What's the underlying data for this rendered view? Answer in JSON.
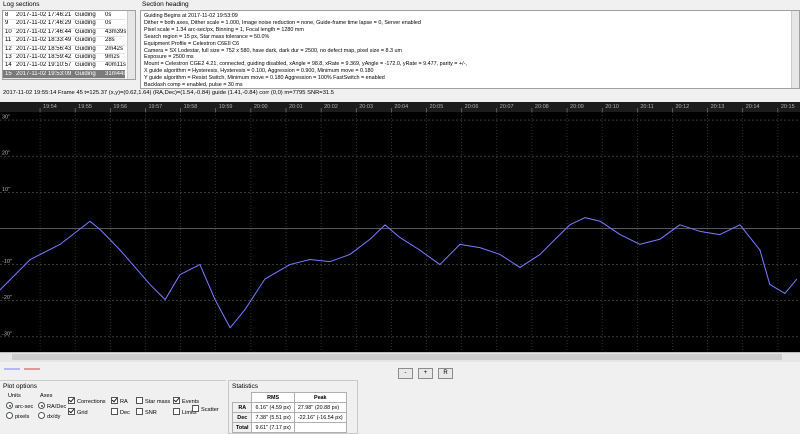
{
  "log_sections": {
    "title": "Log sections",
    "rows": [
      [
        "8",
        "2017-11-02 17:46:21",
        "Guiding",
        "0s"
      ],
      [
        "9",
        "2017-11-02 17:46:29",
        "Guiding",
        "0s"
      ],
      [
        "10",
        "2017-11-02 17:46:44",
        "Guiding",
        "43m39s"
      ],
      [
        "11",
        "2017-11-02 18:33:49",
        "Guiding",
        "28s"
      ],
      [
        "12",
        "2017-11-02 18:56:43",
        "Guiding",
        "2m42s"
      ],
      [
        "13",
        "2017-11-02 18:59:42",
        "Guiding",
        "9m2s"
      ],
      [
        "14",
        "2017-11-02 19:10:57",
        "Guiding",
        "40m11s"
      ],
      [
        "15",
        "2017-11-02 19:53:09",
        "Guiding",
        "31m44s"
      ]
    ]
  },
  "section_heading": {
    "title": "Section heading",
    "lines": [
      "Guiding Begins at 2017-11-02 19:53:09",
      "Dither = both axes, Dither scale = 1.000, Image noise reduction = none, Guide-frame time lapse = 0, Server enabled",
      "Pixel scale = 1.34 arc-sec/px, Binning = 1, Focal length = 1280 mm",
      "Search region = 15 px, Star mass tolerance = 50.0%",
      "Equipment Profile = Celestron C6EII C6",
      "Camera = SX Lodestar, full size = 752 x 580, have dark, dark dur = 2500, no defect map, pixel size = 8.3 um",
      "Exposure = 2500 ms",
      "Mount = Celestron CGE2 4.21,  connected, guiding disabled, xAngle = 98.8, xRate = 9.369, yAngle = -172.0, yRate = 9.477, parity = +/-,",
      "X guide algorithm = Hysteresis, Hysteresis = 0.100, Aggression = 0.900, Minimum move = 0.180",
      "Y guide algorithm = Resist Switch, Minimum move = 0.180 Aggression = 100% FastSwitch = enabled",
      "Backlash comp = enabled, pulse = 30 ms"
    ]
  },
  "status_line": "2017-11-02 19:55:14 Frame 45 t=125.37 (x,y)=(0.62,1.64) (RA,Dec)=(1.54,-0.84) guide (1.41,-0.84) corr (0,0) m=7795 SNR=31.5",
  "chart_data": {
    "type": "line",
    "xlim": [
      1192.86,
      1215.63
    ],
    "ylim": [
      -34.2,
      35
    ],
    "xticks": [
      {
        "value": 1194,
        "label": "19:54"
      },
      {
        "value": 1195,
        "label": "19:55"
      },
      {
        "value": 1196,
        "label": "19:56"
      },
      {
        "value": 1197,
        "label": "19:57"
      },
      {
        "value": 1198,
        "label": "19:58"
      },
      {
        "value": 1199,
        "label": "19:59"
      },
      {
        "value": 1200,
        "label": "20:00"
      },
      {
        "value": 1201,
        "label": "20:01"
      },
      {
        "value": 1202,
        "label": "20:02"
      },
      {
        "value": 1203,
        "label": "20:03"
      },
      {
        "value": 1204,
        "label": "20:04"
      },
      {
        "value": 1205,
        "label": "20:05"
      },
      {
        "value": 1206,
        "label": "20:06"
      },
      {
        "value": 1207,
        "label": "20:07"
      },
      {
        "value": 1208,
        "label": "20:08"
      },
      {
        "value": 1209,
        "label": "20:09"
      },
      {
        "value": 1210,
        "label": "20:10"
      },
      {
        "value": 1211,
        "label": "20:11"
      },
      {
        "value": 1212,
        "label": "20:12"
      },
      {
        "value": 1213,
        "label": "20:13"
      },
      {
        "value": 1214,
        "label": "20:14"
      },
      {
        "value": 1215,
        "label": "20:15"
      }
    ],
    "yticks": [
      {
        "value": 30,
        "label": "30''"
      },
      {
        "value": 20,
        "label": "20''"
      },
      {
        "value": 10,
        "label": "10''"
      },
      {
        "value": -10,
        "label": "-10''"
      },
      {
        "value": -20,
        "label": "-20''"
      },
      {
        "value": -30,
        "label": "-30''"
      }
    ],
    "grid": true,
    "series": [
      {
        "color": "#7b7bff",
        "x": [
          1192.86,
          1193.72,
          1194.57,
          1195.42,
          1195.71,
          1196.28,
          1197.13,
          1197.56,
          1197.98,
          1198.55,
          1198.98,
          1199.41,
          1199.83,
          1200.4,
          1201.11,
          1201.68,
          1202.25,
          1202.82,
          1203.39,
          1203.82,
          1204.24,
          1204.81,
          1205.38,
          1205.95,
          1206.52,
          1207.09,
          1207.66,
          1208.23,
          1208.66,
          1209.08,
          1209.51,
          1209.94,
          1210.51,
          1211.07,
          1211.64,
          1212.21,
          1212.78,
          1213.35,
          1213.92,
          1214.49,
          1214.77,
          1215.2,
          1215.54
        ],
        "values": [
          -17,
          -8.6,
          -4.4,
          2,
          -0.3,
          -6,
          -15.5,
          -19.7,
          -12.8,
          -10,
          -19.7,
          -27.5,
          -22.5,
          -14,
          -10,
          -8.6,
          -9.2,
          -7.2,
          -3,
          1,
          -2.5,
          -6,
          -10,
          -4.4,
          -5.3,
          -7.2,
          -10.8,
          -7.2,
          -3,
          1,
          3,
          2,
          -1.7,
          -4.4,
          -3,
          1,
          -0.8,
          -1.7,
          1,
          -6,
          -15.5,
          -18,
          -14
        ]
      }
    ]
  },
  "zoom_buttons": [
    "-",
    "+",
    "R"
  ],
  "plot_options": {
    "title": "Plot options",
    "units": {
      "label": "Units",
      "options": [
        "arc-sec",
        "pixels"
      ]
    },
    "axes": {
      "label": "Axes",
      "options": [
        "RA/Dec",
        "dx/dy"
      ]
    },
    "checkboxes": [
      {
        "label": "Corrections",
        "checked": true
      },
      {
        "label": "Grid",
        "checked": true
      },
      {
        "label": "RA",
        "checked": true
      },
      {
        "label": "Dec",
        "checked": false
      },
      {
        "label": "Star mass",
        "checked": false
      },
      {
        "label": "SNR",
        "checked": false
      },
      {
        "label": "Events",
        "checked": true
      },
      {
        "label": "Limits",
        "checked": false
      },
      {
        "label": "Scatter",
        "checked": false
      }
    ]
  },
  "statistics": {
    "title": "Statistics",
    "header": [
      "RMS",
      "Peak"
    ],
    "rows": [
      [
        "RA",
        "6.16'' (4.59 px)",
        "27.98'' (20.88 px)"
      ],
      [
        "Dec",
        "7.38'' (5.51 px)",
        "-22.16'' (-16.54 px)"
      ],
      [
        "Total",
        "9.61'' (7.17 px)"
      ]
    ]
  }
}
